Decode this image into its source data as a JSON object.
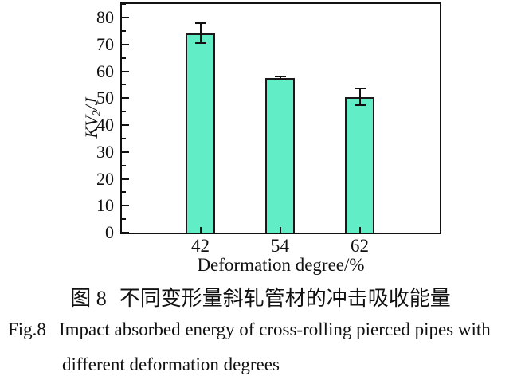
{
  "figure": {
    "caption_cn": {
      "label": "图 8",
      "text": "不同变形量斜轧管材的冲击吸收能量"
    },
    "caption_en": {
      "label": "Fig.8",
      "line1": "Impact absorbed energy of cross-rolling pierced pipes with",
      "line2": "different deformation degrees"
    }
  },
  "chart_data": {
    "type": "bar",
    "categories": [
      "42",
      "54",
      "62"
    ],
    "values": [
      74.2,
      57.4,
      50.5
    ],
    "errors": [
      3.8,
      0.6,
      3.1
    ],
    "title": "",
    "xlabel": "Deformation degree/%",
    "ylabel": {
      "main": "KV",
      "sub": "2",
      "unit": "/J"
    },
    "ylim": [
      0,
      85
    ],
    "yticks": [
      0,
      10,
      20,
      30,
      40,
      50,
      60,
      70,
      80
    ],
    "yminor_ticks": [
      5,
      15,
      25,
      35,
      45,
      55,
      65,
      75,
      85
    ],
    "grid": false,
    "legend": "none",
    "bar_color": "#61eec6",
    "bar_border_color": "#1a1a1a",
    "axis_color": "#111111",
    "error_bar_color": "#111111"
  }
}
